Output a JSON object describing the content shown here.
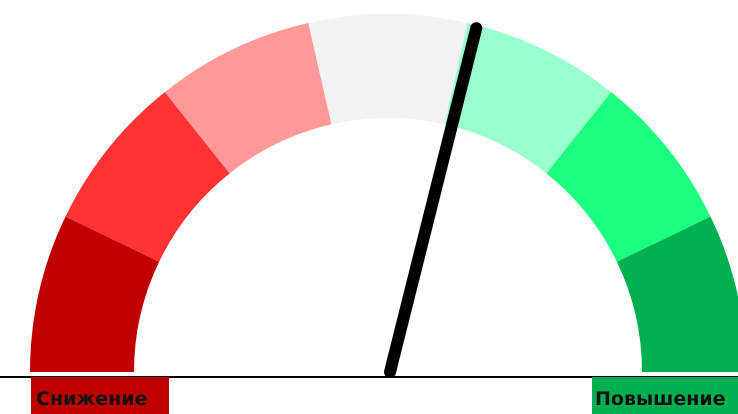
{
  "chart_data": {
    "type": "gauge",
    "title": "",
    "segments": [
      {
        "color": "#c00000"
      },
      {
        "color": "#ff3333"
      },
      {
        "color": "#ff9999"
      },
      {
        "color": "#f2f2f2"
      },
      {
        "color": "#99ffcc"
      },
      {
        "color": "#1aff80"
      },
      {
        "color": "#00b050"
      }
    ],
    "needle_value": 0.58,
    "needle_color": "#000000",
    "labels": {
      "low": "Снижение",
      "high": "Повышение"
    },
    "label_colors": {
      "low": "#c00000",
      "high": "#00b050"
    }
  }
}
